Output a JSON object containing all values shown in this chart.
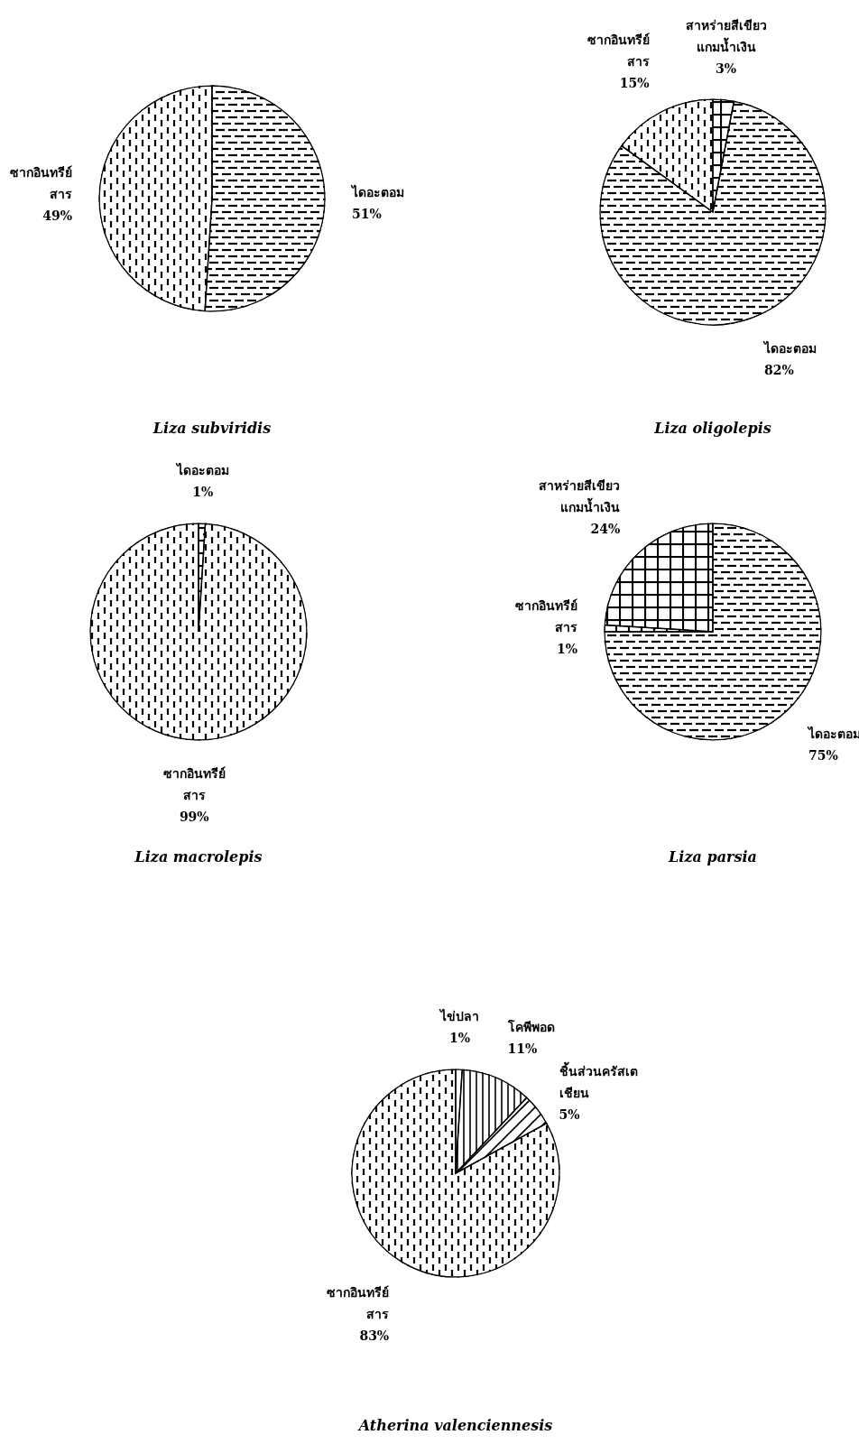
{
  "chart_data": [
    {
      "type": "pie",
      "title": "Liza subviridis",
      "categories": [
        "ไดอะตอม",
        "ซากอินทรีย์\nสาร"
      ],
      "values": [
        51,
        49
      ],
      "value_labels": [
        "51%",
        "49%"
      ],
      "colors": [
        "#000000",
        "#000000"
      ]
    },
    {
      "type": "pie",
      "title": "Liza oligolepis",
      "categories": [
        "สาหร่ายสีเขียว\nแกมน้ำเงิน",
        "ไดอะตอม",
        "ซากอินทรีย์\nสาร"
      ],
      "values": [
        3,
        82,
        15
      ],
      "value_labels": [
        "3%",
        "82%",
        "15%"
      ],
      "colors": [
        "#000000",
        "#000000",
        "#000000"
      ]
    },
    {
      "type": "pie",
      "title": "Liza macrolepis",
      "categories": [
        "ไดอะตอม",
        "ซากอินทรีย์\nสาร"
      ],
      "values": [
        1,
        99
      ],
      "value_labels": [
        "1%",
        "99%"
      ],
      "colors": [
        "#000000",
        "#000000"
      ]
    },
    {
      "type": "pie",
      "title": "Liza parsia",
      "categories": [
        "ไดอะตอม",
        "ซากอินทรีย์\nสาร",
        "สาหร่ายสีเขียว\nแกมน้ำเงิน"
      ],
      "values": [
        75,
        1,
        24
      ],
      "value_labels": [
        "75%",
        "1%",
        "24%"
      ],
      "colors": [
        "#000000",
        "#000000",
        "#000000"
      ]
    },
    {
      "type": "pie",
      "title": "Atherina valenciennesis",
      "categories": [
        "ไข่ปลา",
        "โคพีพอด",
        "ชิ้นส่วนครัสเต\nเชียน",
        "ซากอินทรีย์\nสาร"
      ],
      "values": [
        1,
        11,
        5,
        83
      ],
      "value_labels": [
        "1%",
        "11%",
        "5%",
        "83%"
      ],
      "colors": [
        "#000000",
        "#000000",
        "#000000",
        "#000000"
      ]
    }
  ]
}
